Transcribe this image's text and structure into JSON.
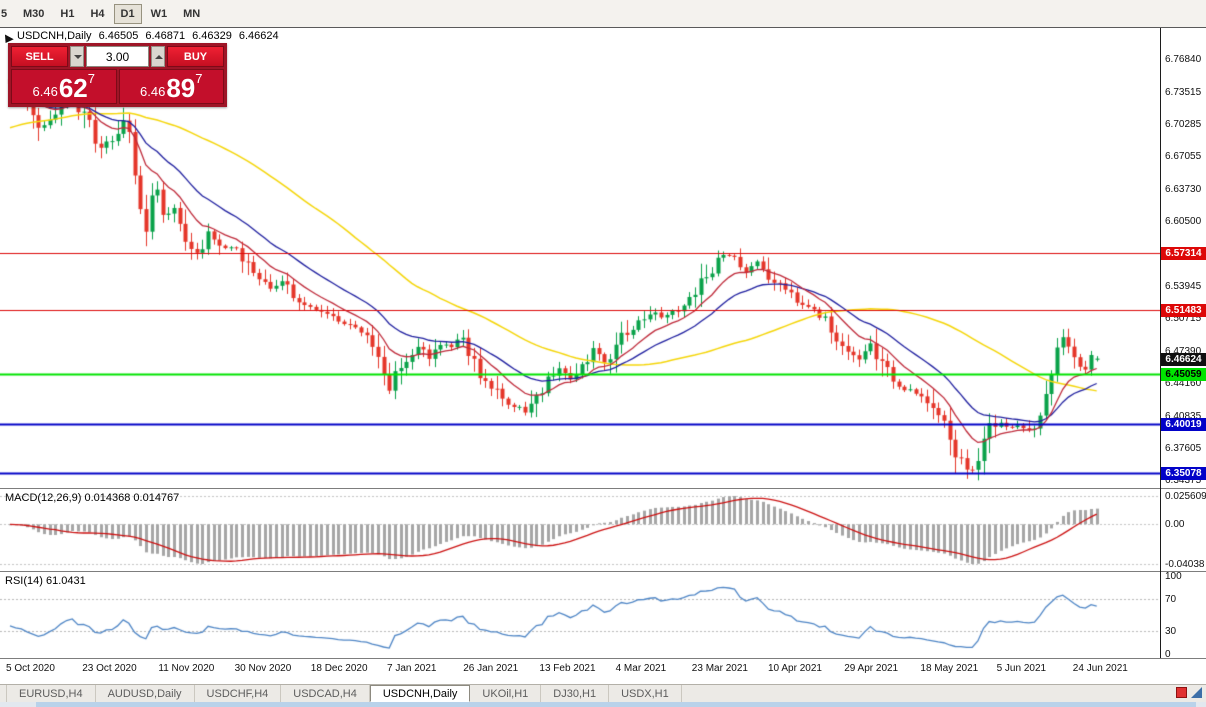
{
  "toolbar": {
    "timeframes": [
      "5",
      "M30",
      "H1",
      "H4",
      "D1",
      "W1",
      "MN"
    ],
    "active_timeframe": "D1"
  },
  "header": {
    "symbol": "USDCNH,Daily",
    "open": "6.46505",
    "high": "6.46871",
    "low": "6.46329",
    "close": "6.46624"
  },
  "one_click": {
    "sell_label": "SELL",
    "buy_label": "BUY",
    "lot_size": "3.00",
    "bid": {
      "big_figure": "6.46",
      "pips": "62",
      "pip_fraction": "7"
    },
    "ask": {
      "big_figure": "6.46",
      "pips": "89",
      "pip_fraction": "7"
    }
  },
  "price_axis": {
    "labels": [
      "6.76840",
      "6.73515",
      "6.70285",
      "6.67055",
      "6.63730",
      "6.60500",
      "6.53945",
      "6.50715",
      "6.47390",
      "6.44160",
      "6.40835",
      "6.37605",
      "6.34375"
    ]
  },
  "levels": [
    {
      "value": 6.57314,
      "label": "6.57314",
      "color": "#dd0808",
      "text_color": "#ffffff",
      "line_width": 1
    },
    {
      "value": 6.51483,
      "label": "6.51483",
      "color": "#dd0808",
      "text_color": "#ffffff",
      "line_width": 1
    },
    {
      "value": 6.45059,
      "label": "6.45059",
      "color": "#00e400",
      "text_color": "#000000",
      "line_width": 2
    },
    {
      "value": 6.40019,
      "label": "6.40019",
      "color": "#0202c8",
      "text_color": "#ffffff",
      "line_width": 2
    },
    {
      "value": 6.35078,
      "label": "6.35078",
      "color": "#0202c8",
      "text_color": "#ffffff",
      "line_width": 2
    }
  ],
  "current_price": {
    "value": 6.46624,
    "label": "6.46624",
    "bg": "#101010",
    "text_color": "#ffffff"
  },
  "macd_panel": {
    "title": "MACD(12,26,9) 0.014368 0.014767",
    "axis_labels": {
      "max": "0.025609",
      "zero": "0.00",
      "min": "-0.04038"
    }
  },
  "rsi_panel": {
    "title": "RSI(14) 61.0431",
    "axis_labels": [
      "100",
      "70",
      "30",
      "0"
    ]
  },
  "time_axis": {
    "labels": [
      "5 Oct 2020",
      "23 Oct 2020",
      "11 Nov 2020",
      "30 Nov 2020",
      "18 Dec 2020",
      "7 Jan 2021",
      "26 Jan 2021",
      "13 Feb 2021",
      "4 Mar 2021",
      "23 Mar 2021",
      "10 Apr 2021",
      "29 Apr 2021",
      "18 May 2021",
      "5 Jun 2021",
      "24 Jun 2021"
    ]
  },
  "tabs": {
    "items": [
      "EURUSD,H4",
      "AUDUSD,Daily",
      "USDCHF,H4",
      "USDCAD,H4",
      "USDCNH,Daily",
      "UKOil,H1",
      "DJ30,H1",
      "USDX,H1"
    ],
    "active": "USDCNH,Daily"
  },
  "colors": {
    "bull": "#0aa24a",
    "bear": "#e5362a",
    "ma_fast": "#bf2a3a",
    "ma_medium": "#2020a0",
    "ma_slow": "#f5d60a",
    "macd_hist": "#a6a6a6",
    "macd_signal": "#cc1111",
    "rsi_line": "#4f86c6"
  },
  "chart_data": {
    "type": "candlestick",
    "symbol": "USDCNH",
    "timeframe": "Daily",
    "visible_range": {
      "start": "5 Oct 2020",
      "end": "30 Jun 2021"
    },
    "price_scale": {
      "top": 6.7997,
      "bottom": 6.3357
    },
    "candle_count": 193,
    "last_ohlc": {
      "o": 6.46505,
      "h": 6.46871,
      "l": 6.46329,
      "c": 6.46624
    },
    "close_anchors": [
      [
        0,
        6.742
      ],
      [
        2,
        6.735
      ],
      [
        4,
        6.716
      ],
      [
        5,
        6.698
      ],
      [
        7,
        6.708
      ],
      [
        9,
        6.722
      ],
      [
        11,
        6.731
      ],
      [
        14,
        6.701
      ],
      [
        16,
        6.677
      ],
      [
        18,
        6.691
      ],
      [
        20,
        6.709
      ],
      [
        21,
        6.691
      ],
      [
        22,
        6.656
      ],
      [
        23,
        6.619
      ],
      [
        24,
        6.601
      ],
      [
        25,
        6.626
      ],
      [
        26,
        6.636
      ],
      [
        27,
        6.611
      ],
      [
        29,
        6.621
      ],
      [
        31,
        6.586
      ],
      [
        33,
        6.571
      ],
      [
        35,
        6.59
      ],
      [
        37,
        6.58
      ],
      [
        40,
        6.577
      ],
      [
        42,
        6.558
      ],
      [
        44,
        6.548
      ],
      [
        46,
        6.536
      ],
      [
        48,
        6.544
      ],
      [
        50,
        6.53
      ],
      [
        52,
        6.521
      ],
      [
        54,
        6.516
      ],
      [
        56,
        6.51
      ],
      [
        58,
        6.504
      ],
      [
        60,
        6.498
      ],
      [
        62,
        6.493
      ],
      [
        64,
        6.478
      ],
      [
        65,
        6.462
      ],
      [
        67,
        6.433
      ],
      [
        68,
        6.448
      ],
      [
        70,
        6.464
      ],
      [
        72,
        6.476
      ],
      [
        74,
        6.468
      ],
      [
        76,
        6.482
      ],
      [
        78,
        6.478
      ],
      [
        80,
        6.489
      ],
      [
        82,
        6.46
      ],
      [
        84,
        6.445
      ],
      [
        86,
        6.43
      ],
      [
        88,
        6.422
      ],
      [
        91,
        6.414
      ],
      [
        93,
        6.429
      ],
      [
        95,
        6.444
      ],
      [
        97,
        6.454
      ],
      [
        99,
        6.447
      ],
      [
        101,
        6.46
      ],
      [
        103,
        6.472
      ],
      [
        105,
        6.464
      ],
      [
        107,
        6.479
      ],
      [
        109,
        6.494
      ],
      [
        111,
        6.502
      ],
      [
        113,
        6.514
      ],
      [
        115,
        6.506
      ],
      [
        117,
        6.512
      ],
      [
        119,
        6.518
      ],
      [
        120,
        6.524
      ],
      [
        122,
        6.542
      ],
      [
        124,
        6.558
      ],
      [
        126,
        6.572
      ],
      [
        128,
        6.567
      ],
      [
        130,
        6.557
      ],
      [
        132,
        6.562
      ],
      [
        134,
        6.549
      ],
      [
        136,
        6.539
      ],
      [
        138,
        6.53
      ],
      [
        140,
        6.522
      ],
      [
        142,
        6.516
      ],
      [
        144,
        6.505
      ],
      [
        146,
        6.488
      ],
      [
        148,
        6.474
      ],
      [
        150,
        6.466
      ],
      [
        152,
        6.479
      ],
      [
        154,
        6.46
      ],
      [
        156,
        6.444
      ],
      [
        158,
        6.437
      ],
      [
        159,
        6.434
      ],
      [
        161,
        6.428
      ],
      [
        163,
        6.412
      ],
      [
        165,
        6.398
      ],
      [
        166,
        6.386
      ],
      [
        167,
        6.372
      ],
      [
        168,
        6.362
      ],
      [
        169,
        6.356
      ],
      [
        170,
        6.354
      ],
      [
        171,
        6.368
      ],
      [
        172,
        6.382
      ],
      [
        173,
        6.394
      ],
      [
        174,
        6.402
      ],
      [
        176,
        6.396
      ],
      [
        178,
        6.4
      ],
      [
        180,
        6.392
      ],
      [
        182,
        6.406
      ],
      [
        183,
        6.432
      ],
      [
        184,
        6.456
      ],
      [
        185,
        6.474
      ],
      [
        186,
        6.488
      ],
      [
        187,
        6.478
      ],
      [
        188,
        6.462
      ],
      [
        190,
        6.456
      ],
      [
        191,
        6.464
      ],
      [
        192,
        6.46624
      ]
    ],
    "overlays": [
      {
        "name": "ma-fast",
        "period": 10
      },
      {
        "name": "ma-medium",
        "period": 21
      },
      {
        "name": "ma-slow",
        "period": 50
      }
    ],
    "horizontal_lines": [
      6.57314,
      6.51483,
      6.45059,
      6.40019,
      6.35078
    ],
    "macd": {
      "params": [
        12,
        26,
        9
      ],
      "current_macd": 0.014368,
      "current_signal": 0.014767,
      "scale_max": 0.025609,
      "scale_min": -0.04038
    },
    "rsi": {
      "period": 14,
      "current": 61.0431,
      "levels": [
        70,
        30
      ],
      "range": [
        0,
        100
      ]
    }
  }
}
